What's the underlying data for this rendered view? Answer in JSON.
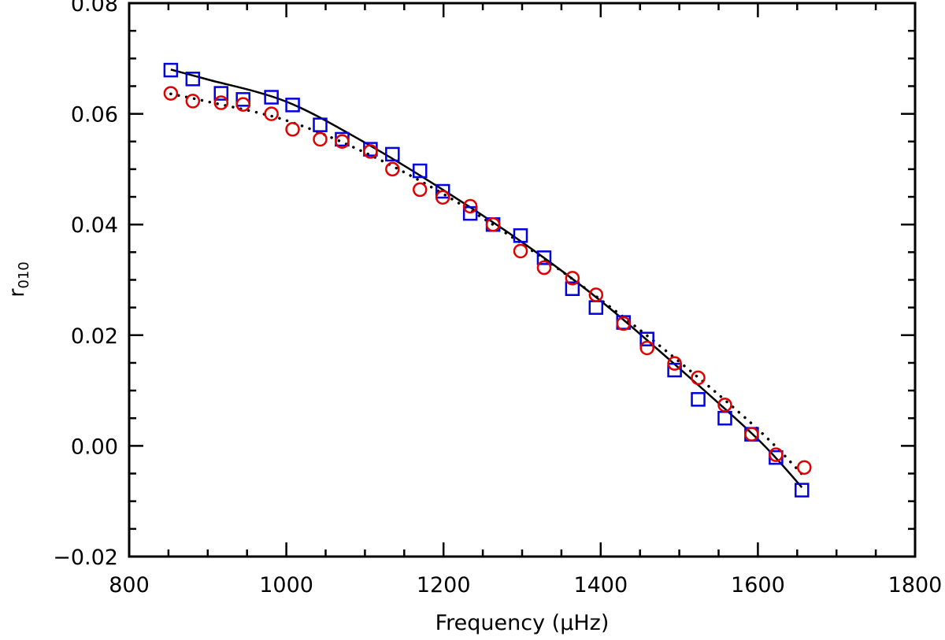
{
  "chart_data": {
    "type": "scatter",
    "title": "",
    "xlabel": "Frequency (μHz)",
    "ylabel": "r",
    "ylabel_sub": "010",
    "xlim": [
      800,
      1800
    ],
    "ylim": [
      -0.02,
      0.08
    ],
    "xticks": [
      800,
      1000,
      1200,
      1400,
      1600,
      1800
    ],
    "xtick_labels": [
      "800",
      "1000",
      "1200",
      "1400",
      "1600",
      "1800"
    ],
    "yticks": [
      -0.02,
      0.0,
      0.02,
      0.04,
      0.06,
      0.08
    ],
    "ytick_labels": [
      "−0.02",
      "0.00",
      "0.02",
      "0.04",
      "0.06",
      "0.08"
    ],
    "grid": false,
    "series": [
      {
        "name": "squares",
        "marker": "square",
        "color": "#0000e0",
        "x": [
          853,
          881,
          917,
          945,
          981,
          1008,
          1043,
          1071,
          1107,
          1135,
          1170,
          1199,
          1234,
          1263,
          1298,
          1328,
          1364,
          1394,
          1429,
          1459,
          1494,
          1524,
          1558,
          1592,
          1623,
          1656
        ],
        "y": [
          0.0679,
          0.0663,
          0.0637,
          0.0626,
          0.063,
          0.0616,
          0.058,
          0.0554,
          0.0536,
          0.0527,
          0.0497,
          0.046,
          0.042,
          0.04,
          0.038,
          0.034,
          0.0284,
          0.025,
          0.0223,
          0.0193,
          0.0137,
          0.0084,
          0.005,
          0.0021,
          -0.0021,
          -0.008
        ]
      },
      {
        "name": "circles",
        "marker": "circle",
        "color": "#e00000",
        "x": [
          853,
          881,
          917,
          945,
          981,
          1008,
          1043,
          1071,
          1107,
          1135,
          1170,
          1199,
          1234,
          1263,
          1298,
          1328,
          1364,
          1394,
          1429,
          1459,
          1494,
          1524,
          1558,
          1592,
          1623,
          1659
        ],
        "y": [
          0.0637,
          0.0623,
          0.062,
          0.0617,
          0.06,
          0.0572,
          0.0554,
          0.055,
          0.0532,
          0.05,
          0.0463,
          0.0449,
          0.0433,
          0.04,
          0.0352,
          0.0322,
          0.0303,
          0.0273,
          0.0221,
          0.0177,
          0.0149,
          0.0123,
          0.0074,
          0.0021,
          -0.0016,
          -0.0039
        ]
      },
      {
        "name": "fit-solid",
        "type": "line",
        "style": "solid",
        "color": "#000000",
        "x": [
          853,
          900,
          1000,
          1100,
          1200,
          1300,
          1400,
          1500,
          1600,
          1656
        ],
        "y": [
          0.068,
          0.0662,
          0.0622,
          0.0548,
          0.0462,
          0.0368,
          0.0262,
          0.014,
          0.0012,
          -0.0075
        ]
      },
      {
        "name": "fit-dotted",
        "type": "line",
        "style": "dotted",
        "color": "#000000",
        "x": [
          853,
          900,
          1000,
          1100,
          1200,
          1300,
          1400,
          1500,
          1600,
          1662
        ],
        "y": [
          0.0636,
          0.0622,
          0.0588,
          0.053,
          0.0455,
          0.0365,
          0.0264,
          0.0152,
          0.003,
          -0.006
        ]
      }
    ]
  }
}
